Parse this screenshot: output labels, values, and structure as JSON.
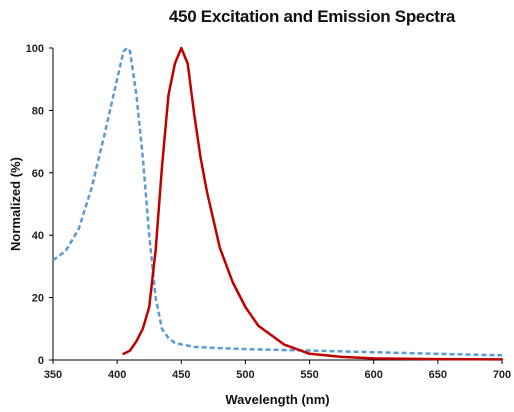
{
  "chart_data": {
    "type": "line",
    "title": "450 Excitation and Emission Spectra",
    "xlabel": "Wavelength (nm)",
    "ylabel": "Normalized (%)",
    "xlim": [
      350,
      700
    ],
    "ylim": [
      0,
      100
    ],
    "x_ticks": [
      "350",
      "400",
      "450",
      "500",
      "550",
      "600",
      "650",
      "700"
    ],
    "y_ticks": [
      "0",
      "20",
      "40",
      "60",
      "80",
      "100"
    ],
    "grid": false,
    "legend": "none",
    "series": [
      {
        "style": "dashed",
        "color": "#5b9bd5",
        "x": [
          350,
          360,
          370,
          380,
          390,
          400,
          405,
          408,
          410,
          415,
          420,
          425,
          430,
          435,
          440,
          445,
          450,
          460,
          480,
          500,
          550,
          600,
          650,
          700
        ],
        "y": [
          32,
          35,
          42,
          55,
          72,
          90,
          99,
          100,
          99,
          85,
          65,
          40,
          20,
          10,
          7,
          5.5,
          5,
          4.2,
          3.8,
          3.5,
          3,
          2.5,
          2,
          1.5
        ]
      },
      {
        "style": "solid",
        "color": "#c00000",
        "x": [
          405,
          410,
          415,
          420,
          425,
          430,
          435,
          440,
          445,
          450,
          455,
          460,
          465,
          470,
          480,
          490,
          500,
          510,
          520,
          530,
          550,
          575,
          600,
          650,
          700
        ],
        "y": [
          2,
          3,
          6,
          10,
          17,
          35,
          62,
          85,
          95,
          100,
          95,
          79,
          65,
          54,
          36,
          25,
          17,
          11,
          8,
          5,
          2,
          1,
          0.5,
          0.3,
          0.2
        ]
      }
    ]
  }
}
